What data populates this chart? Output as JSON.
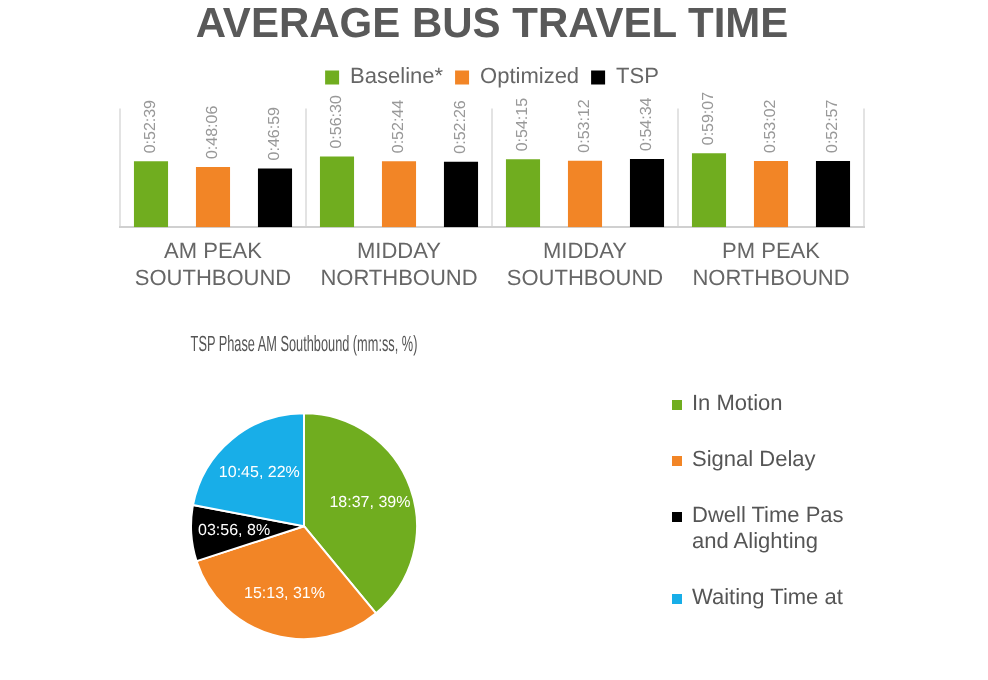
{
  "chart_data": [
    {
      "type": "bar",
      "title": "AVERAGE BUS TRAVEL TIME",
      "categories": [
        "AM PEAK\nSOUTHBOUND",
        "MIDDAY\nNORTHBOUND",
        "MIDDAY\nSOUTHBOUND",
        "PM PEAK\nNORTHBOUND"
      ],
      "series": [
        {
          "name": "Baseline*",
          "color": "#70ad1f",
          "values": [
            52.65,
            56.5,
            54.25,
            59.12
          ],
          "value_labels": [
            "0:52:39",
            "0:56:30",
            "0:54:15",
            "0:59:07"
          ]
        },
        {
          "name": "Optimized",
          "color": "#f28526",
          "values": [
            48.1,
            52.73,
            53.2,
            53.03
          ],
          "value_labels": [
            "0:48:06",
            "0:52:44",
            "0:53:12",
            "0:53:02"
          ]
        },
        {
          "name": "TSP",
          "color": "#000000",
          "values": [
            46.98,
            52.43,
            54.57,
            52.95
          ],
          "value_labels": [
            "0:46:59",
            "0:52:26",
            "0:54:34",
            "0:52:57"
          ]
        }
      ],
      "ylim": [
        0,
        95
      ],
      "tick_labels": "x",
      "grid": "x",
      "legend": "top"
    },
    {
      "type": "pie",
      "title": "TSP Phase AM Southbound (mm:ss, %)",
      "categories": [
        "In Motion",
        "Signal Delay",
        "Dwell Time Pas and Alighting",
        "Waiting Time at"
      ],
      "values": [
        39,
        31,
        8,
        22
      ],
      "value_labels": [
        "18:37, 39%",
        "15:13, 31%",
        "03:56, 8%",
        "10:45, 22%"
      ],
      "colors": [
        "#70ad1f",
        "#f28526",
        "#000000",
        "#18aee8"
      ],
      "legend": "right"
    }
  ]
}
